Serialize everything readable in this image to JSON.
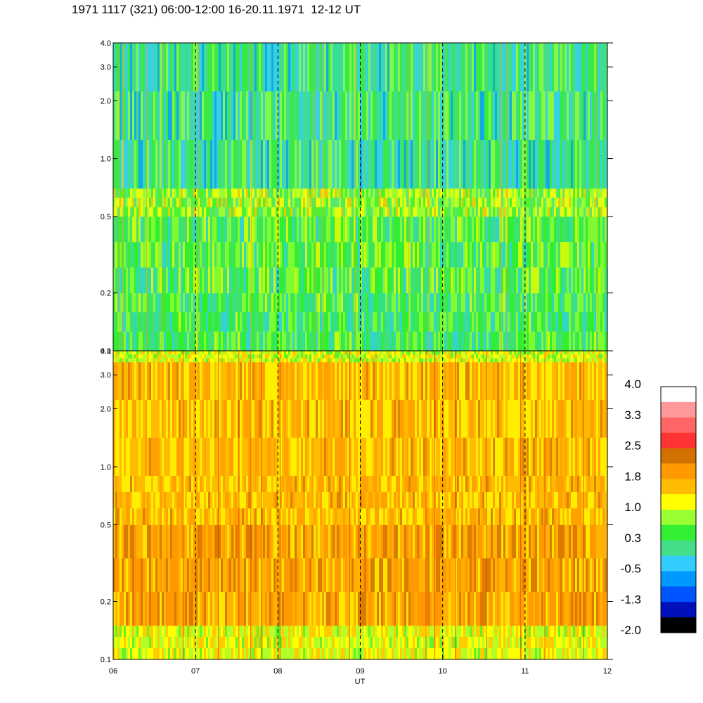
{
  "title": "1971 1117 (321) 06:00-12:00 16-20.11.1971  12-12 UT",
  "chart_data": [
    {
      "type": "heatmap",
      "panel": "upper",
      "xlabel": "",
      "ylabel": "",
      "x_range": [
        6,
        12
      ],
      "x_ticks": [
        "06",
        "07",
        "08",
        "09",
        "10",
        "11",
        "12"
      ],
      "y_scale": "log",
      "y_range": [
        0.1,
        4.0
      ],
      "y_ticks": [
        "0.1",
        "0.2",
        "0.5",
        "1.0",
        "2.0",
        "3.0",
        "4.0"
      ],
      "y_tick_values": [
        0.1,
        0.2,
        0.5,
        1.0,
        2.0,
        3.0,
        4.0
      ],
      "dashed_verticals_at": [
        7,
        8,
        9,
        10,
        11
      ],
      "dominant_levels": "mostly -0.5 to 1.0 (blue-green to yellow-green)",
      "bands": [
        {
          "y_from": 0.1,
          "y_to": 0.2,
          "level": 0.3
        },
        {
          "y_from": 0.2,
          "y_to": 0.5,
          "level": 0.5
        },
        {
          "y_from": 0.5,
          "y_to": 0.7,
          "level": 0.8
        },
        {
          "y_from": 0.7,
          "y_to": 4.0,
          "level": 0.1
        }
      ]
    },
    {
      "type": "heatmap",
      "panel": "lower",
      "xlabel": "UT",
      "ylabel": "",
      "x_range": [
        6,
        12
      ],
      "x_ticks": [
        "06",
        "07",
        "08",
        "09",
        "10",
        "11",
        "12"
      ],
      "y_scale": "log",
      "y_range": [
        0.1,
        4.0
      ],
      "y_ticks": [
        "0.1",
        "0.2",
        "0.5",
        "1.0",
        "2.0",
        "3.0",
        "4.0"
      ],
      "y_tick_values": [
        0.1,
        0.2,
        0.5,
        1.0,
        2.0,
        3.0,
        4.0
      ],
      "dashed_verticals_at": [
        7,
        8,
        9,
        10,
        11
      ],
      "dominant_levels": "mostly 1.0 to 2.2 (yellow to dark orange)",
      "bands": [
        {
          "y_from": 0.1,
          "y_to": 0.15,
          "level": 1.1
        },
        {
          "y_from": 0.15,
          "y_to": 0.5,
          "level": 1.8
        },
        {
          "y_from": 0.5,
          "y_to": 0.9,
          "level": 1.6
        },
        {
          "y_from": 0.9,
          "y_to": 3.5,
          "level": 1.6
        },
        {
          "y_from": 3.5,
          "y_to": 4.0,
          "level": 1.0
        }
      ]
    }
  ],
  "colorbar": {
    "labels": [
      "4.0",
      "3.3",
      "2.5",
      "1.8",
      "1.0",
      "0.3",
      "-0.5",
      "-1.3",
      "-2.0"
    ],
    "colors": [
      "#ffffff",
      "#ff9999",
      "#ff6666",
      "#ff3333",
      "#d27000",
      "#ff9900",
      "#ffbb00",
      "#ffff00",
      "#99ff33",
      "#33ee33",
      "#44dd88",
      "#33ccff",
      "#0099ff",
      "#0055ff",
      "#0011bb",
      "#000000"
    ]
  }
}
